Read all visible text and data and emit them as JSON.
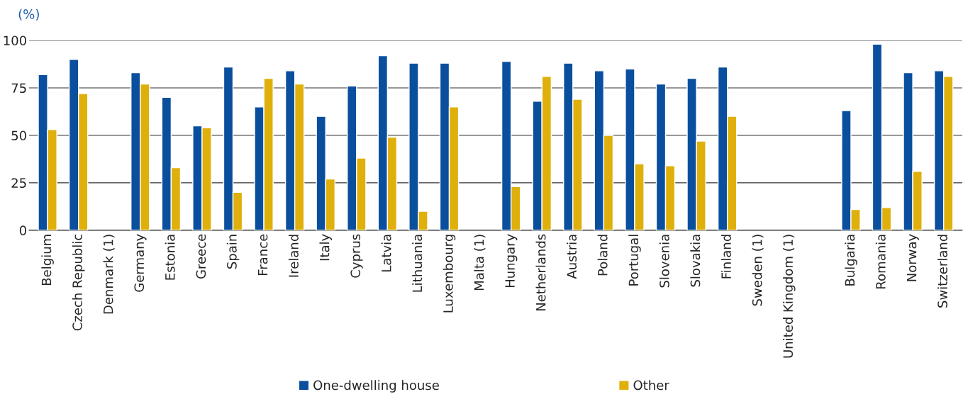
{
  "chart_data": {
    "type": "bar",
    "ylabel": "(%)",
    "categories": [
      "Belgium",
      "Czech Republic",
      "Denmark (1)",
      "Germany",
      "Estonia",
      "Greece",
      "Spain",
      "France",
      "Ireland",
      "Italy",
      "Cyprus",
      "Latvia",
      "Lithuania",
      "Luxembourg",
      "Malta (1)",
      "Hungary",
      "Netherlands",
      "Austria",
      "Poland",
      "Portugal",
      "Slovenia",
      "Slovakia",
      "Finland",
      "Sweden (1)",
      "United Kingdom (1)",
      null,
      "Bulgaria",
      "Romania",
      "Norway",
      "Switzerland"
    ],
    "series": [
      {
        "name": "One-dwelling house",
        "color": "#0a4f9e",
        "values": [
          82,
          90,
          null,
          83,
          70,
          55,
          86,
          65,
          84,
          60,
          76,
          92,
          88,
          88,
          null,
          89,
          68,
          88,
          84,
          85,
          77,
          80,
          86,
          null,
          null,
          null,
          63,
          98,
          83,
          84
        ]
      },
      {
        "name": "Other",
        "color": "#dfb00c",
        "values": [
          53,
          72,
          null,
          77,
          33,
          54,
          20,
          80,
          77,
          27,
          38,
          49,
          10,
          65,
          null,
          23,
          81,
          69,
          50,
          35,
          34,
          47,
          60,
          null,
          null,
          null,
          11,
          12,
          31,
          81
        ]
      }
    ],
    "ylim": [
      0,
      100
    ],
    "yticks": [
      0,
      25,
      50,
      75,
      100
    ],
    "grid": "y",
    "legend": "bottom"
  }
}
